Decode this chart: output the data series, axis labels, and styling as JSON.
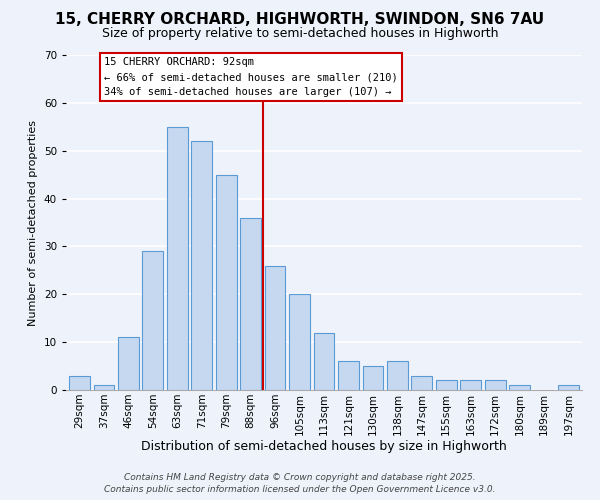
{
  "title": "15, CHERRY ORCHARD, HIGHWORTH, SWINDON, SN6 7AU",
  "subtitle": "Size of property relative to semi-detached houses in Highworth",
  "xlabel": "Distribution of semi-detached houses by size in Highworth",
  "ylabel": "Number of semi-detached properties",
  "bar_labels": [
    "29sqm",
    "37sqm",
    "46sqm",
    "54sqm",
    "63sqm",
    "71sqm",
    "79sqm",
    "88sqm",
    "96sqm",
    "105sqm",
    "113sqm",
    "121sqm",
    "130sqm",
    "138sqm",
    "147sqm",
    "155sqm",
    "163sqm",
    "172sqm",
    "180sqm",
    "189sqm",
    "197sqm"
  ],
  "bar_values": [
    3,
    1,
    11,
    29,
    55,
    52,
    45,
    36,
    26,
    20,
    12,
    6,
    5,
    6,
    3,
    2,
    2,
    2,
    1,
    0,
    1
  ],
  "bar_color": "#c5d8f0",
  "bar_edge_color": "#5b9bd5",
  "ylim": [
    0,
    70
  ],
  "yticks": [
    0,
    10,
    20,
    30,
    40,
    50,
    60,
    70
  ],
  "vline_index": 7.5,
  "vline_color": "#cc0000",
  "annotation_title": "15 CHERRY ORCHARD: 92sqm",
  "annotation_line1": "← 66% of semi-detached houses are smaller (210)",
  "annotation_line2": "34% of semi-detached houses are larger (107) →",
  "annotation_box_facecolor": "#ffffff",
  "annotation_box_edgecolor": "#cc0000",
  "footer1": "Contains HM Land Registry data © Crown copyright and database right 2025.",
  "footer2": "Contains public sector information licensed under the Open Government Licence v3.0.",
  "background_color": "#eef3fb",
  "grid_color": "#ffffff",
  "title_fontsize": 11,
  "subtitle_fontsize": 9,
  "xlabel_fontsize": 9,
  "ylabel_fontsize": 8,
  "tick_fontsize": 7.5,
  "annotation_fontsize": 7.5,
  "footer_fontsize": 6.5
}
